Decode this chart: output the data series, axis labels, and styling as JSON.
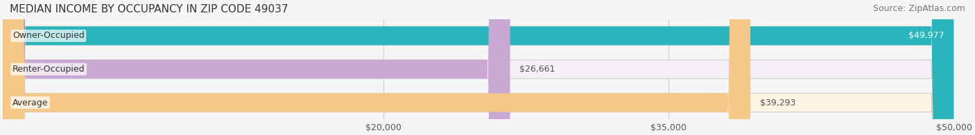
{
  "title": "MEDIAN INCOME BY OCCUPANCY IN ZIP CODE 49037",
  "source": "Source: ZipAtlas.com",
  "categories": [
    "Owner-Occupied",
    "Renter-Occupied",
    "Average"
  ],
  "values": [
    49977,
    26661,
    39293
  ],
  "bar_colors": [
    "#2ab5bc",
    "#c9a8d4",
    "#f5c887"
  ],
  "bar_bg_colors": [
    "#e8f8f9",
    "#f5f0f8",
    "#fdf4e3"
  ],
  "value_labels": [
    "$49,977",
    "$26,661",
    "$39,293"
  ],
  "xlim": [
    0,
    50000
  ],
  "xticks": [
    20000,
    35000,
    50000
  ],
  "xtick_labels": [
    "$20,000",
    "$35,000",
    "$50,000"
  ],
  "bar_height": 0.55,
  "background_color": "#f5f5f5",
  "title_fontsize": 11,
  "source_fontsize": 9,
  "label_fontsize": 9,
  "tick_fontsize": 9
}
